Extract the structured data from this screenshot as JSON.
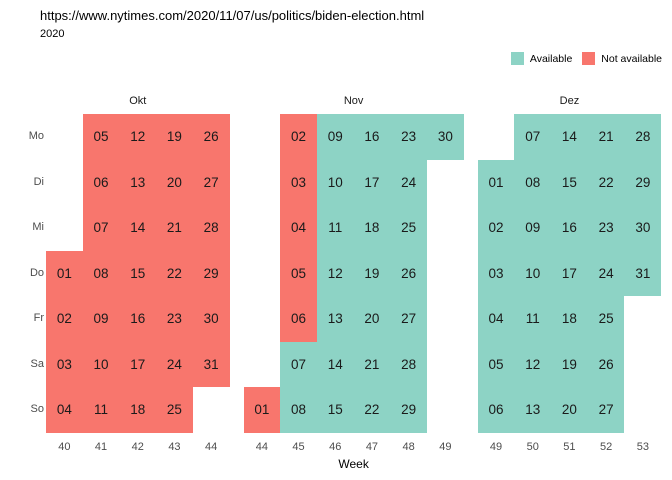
{
  "chart_data": {
    "type": "heatmap",
    "subtype": "calendar-availability",
    "title": "https://www.nytimes.com/2020/11/07/us/politics/biden-election.html",
    "subtitle": "2020",
    "xlabel": "Week",
    "grid": false,
    "day_labels": [
      "Mo",
      "Di",
      "Mi",
      "Do",
      "Fr",
      "Sa",
      "So"
    ],
    "status_colors": {
      "A": "#8DD3C5",
      "N": "#F8766D"
    },
    "legend": {
      "position": "top-right",
      "items": [
        {
          "label": "Available",
          "status": "A",
          "color": "#8DD3C5"
        },
        {
          "label": "Not available",
          "status": "N",
          "color": "#F8766D"
        }
      ]
    },
    "months": [
      {
        "label": "Okt",
        "weeks": [
          40,
          41,
          42,
          43,
          44
        ],
        "columns": [
          {
            "week": 40,
            "days": [
              [
                "Do",
                "01",
                "N"
              ],
              [
                "Fr",
                "02",
                "N"
              ],
              [
                "Sa",
                "03",
                "N"
              ],
              [
                "So",
                "04",
                "N"
              ]
            ]
          },
          {
            "week": 41,
            "days": [
              [
                "Mo",
                "05",
                "N"
              ],
              [
                "Di",
                "06",
                "N"
              ],
              [
                "Mi",
                "07",
                "N"
              ],
              [
                "Do",
                "08",
                "N"
              ],
              [
                "Fr",
                "09",
                "N"
              ],
              [
                "Sa",
                "10",
                "N"
              ],
              [
                "So",
                "11",
                "N"
              ]
            ]
          },
          {
            "week": 42,
            "days": [
              [
                "Mo",
                "12",
                "N"
              ],
              [
                "Di",
                "13",
                "N"
              ],
              [
                "Mi",
                "14",
                "N"
              ],
              [
                "Do",
                "15",
                "N"
              ],
              [
                "Fr",
                "16",
                "N"
              ],
              [
                "Sa",
                "17",
                "N"
              ],
              [
                "So",
                "18",
                "N"
              ]
            ]
          },
          {
            "week": 43,
            "days": [
              [
                "Mo",
                "19",
                "N"
              ],
              [
                "Di",
                "20",
                "N"
              ],
              [
                "Mi",
                "21",
                "N"
              ],
              [
                "Do",
                "22",
                "N"
              ],
              [
                "Fr",
                "23",
                "N"
              ],
              [
                "Sa",
                "24",
                "N"
              ],
              [
                "So",
                "25",
                "N"
              ]
            ]
          },
          {
            "week": 44,
            "days": [
              [
                "Mo",
                "26",
                "N"
              ],
              [
                "Di",
                "27",
                "N"
              ],
              [
                "Mi",
                "28",
                "N"
              ],
              [
                "Do",
                "29",
                "N"
              ],
              [
                "Fr",
                "30",
                "N"
              ],
              [
                "Sa",
                "31",
                "N"
              ]
            ]
          }
        ]
      },
      {
        "label": "Nov",
        "weeks": [
          44,
          45,
          46,
          47,
          48,
          49
        ],
        "columns": [
          {
            "week": 44,
            "days": [
              [
                "So",
                "01",
                "N"
              ]
            ]
          },
          {
            "week": 45,
            "days": [
              [
                "Mo",
                "02",
                "N"
              ],
              [
                "Di",
                "03",
                "N"
              ],
              [
                "Mi",
                "04",
                "N"
              ],
              [
                "Do",
                "05",
                "N"
              ],
              [
                "Fr",
                "06",
                "N"
              ],
              [
                "Sa",
                "07",
                "A"
              ],
              [
                "So",
                "08",
                "A"
              ]
            ]
          },
          {
            "week": 46,
            "days": [
              [
                "Mo",
                "09",
                "A"
              ],
              [
                "Di",
                "10",
                "A"
              ],
              [
                "Mi",
                "11",
                "A"
              ],
              [
                "Do",
                "12",
                "A"
              ],
              [
                "Fr",
                "13",
                "A"
              ],
              [
                "Sa",
                "14",
                "A"
              ],
              [
                "So",
                "15",
                "A"
              ]
            ]
          },
          {
            "week": 47,
            "days": [
              [
                "Mo",
                "16",
                "A"
              ],
              [
                "Di",
                "17",
                "A"
              ],
              [
                "Mi",
                "18",
                "A"
              ],
              [
                "Do",
                "19",
                "A"
              ],
              [
                "Fr",
                "20",
                "A"
              ],
              [
                "Sa",
                "21",
                "A"
              ],
              [
                "So",
                "22",
                "A"
              ]
            ]
          },
          {
            "week": 48,
            "days": [
              [
                "Mo",
                "23",
                "A"
              ],
              [
                "Di",
                "24",
                "A"
              ],
              [
                "Mi",
                "25",
                "A"
              ],
              [
                "Do",
                "26",
                "A"
              ],
              [
                "Fr",
                "27",
                "A"
              ],
              [
                "Sa",
                "28",
                "A"
              ],
              [
                "So",
                "29",
                "A"
              ]
            ]
          },
          {
            "week": 49,
            "days": [
              [
                "Mo",
                "30",
                "A"
              ]
            ]
          }
        ]
      },
      {
        "label": "Dez",
        "weeks": [
          49,
          50,
          51,
          52,
          53
        ],
        "columns": [
          {
            "week": 49,
            "days": [
              [
                "Di",
                "01",
                "A"
              ],
              [
                "Mi",
                "02",
                "A"
              ],
              [
                "Do",
                "03",
                "A"
              ],
              [
                "Fr",
                "04",
                "A"
              ],
              [
                "Sa",
                "05",
                "A"
              ],
              [
                "So",
                "06",
                "A"
              ]
            ]
          },
          {
            "week": 50,
            "days": [
              [
                "Mo",
                "07",
                "A"
              ],
              [
                "Di",
                "08",
                "A"
              ],
              [
                "Mi",
                "09",
                "A"
              ],
              [
                "Do",
                "10",
                "A"
              ],
              [
                "Fr",
                "11",
                "A"
              ],
              [
                "Sa",
                "12",
                "A"
              ],
              [
                "So",
                "13",
                "A"
              ]
            ]
          },
          {
            "week": 51,
            "days": [
              [
                "Mo",
                "14",
                "A"
              ],
              [
                "Di",
                "15",
                "A"
              ],
              [
                "Mi",
                "16",
                "A"
              ],
              [
                "Do",
                "17",
                "A"
              ],
              [
                "Fr",
                "18",
                "A"
              ],
              [
                "Sa",
                "19",
                "A"
              ],
              [
                "So",
                "20",
                "A"
              ]
            ]
          },
          {
            "week": 52,
            "days": [
              [
                "Mo",
                "21",
                "A"
              ],
              [
                "Di",
                "22",
                "A"
              ],
              [
                "Mi",
                "23",
                "A"
              ],
              [
                "Do",
                "24",
                "A"
              ],
              [
                "Fr",
                "25",
                "A"
              ],
              [
                "Sa",
                "26",
                "A"
              ],
              [
                "So",
                "27",
                "A"
              ]
            ]
          },
          {
            "week": 53,
            "days": [
              [
                "Mo",
                "28",
                "A"
              ],
              [
                "Di",
                "29",
                "A"
              ],
              [
                "Mi",
                "30",
                "A"
              ],
              [
                "Do",
                "31",
                "A"
              ]
            ]
          }
        ]
      }
    ]
  }
}
